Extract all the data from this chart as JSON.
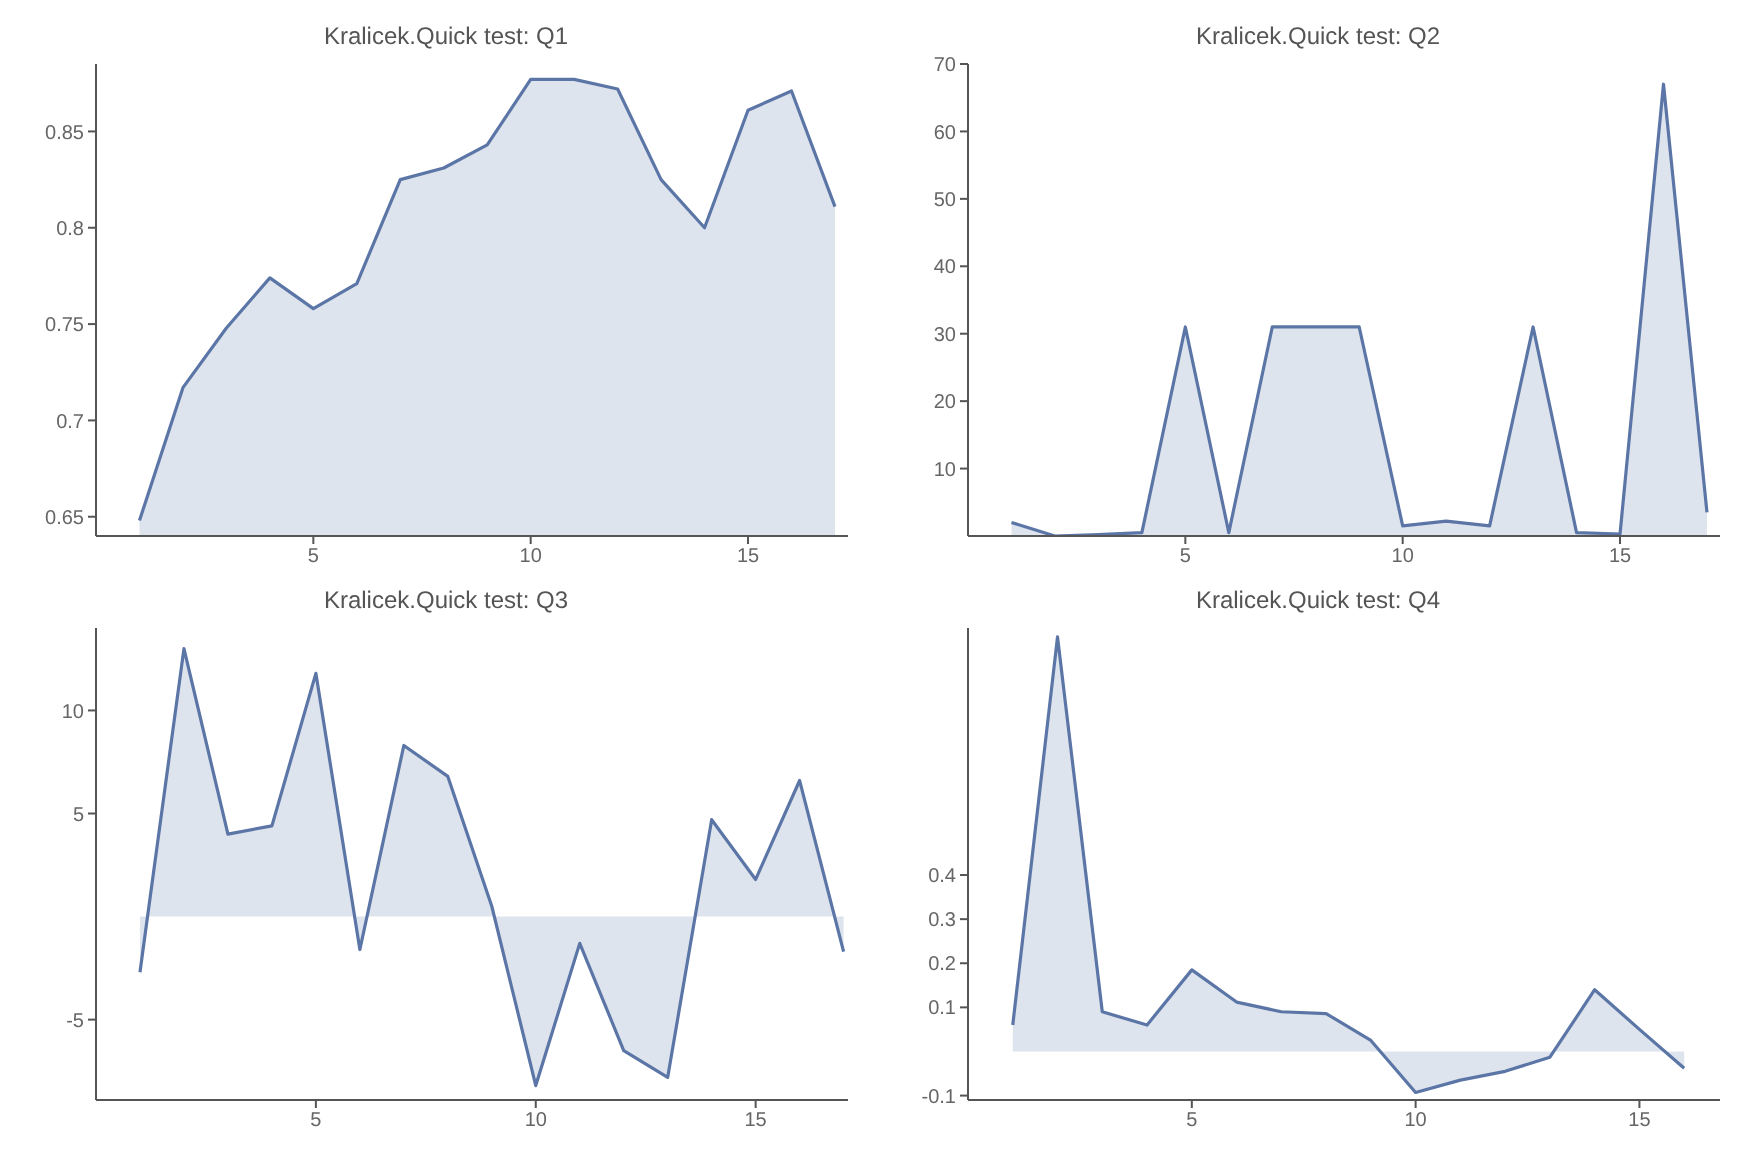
{
  "chart_data": [
    {
      "type": "area",
      "title": "Kralicek.Quick test: Q1",
      "x": [
        1,
        2,
        3,
        4,
        5,
        6,
        7,
        8,
        9,
        10,
        11,
        12,
        13,
        14,
        15,
        16,
        17
      ],
      "values": [
        0.648,
        0.717,
        0.748,
        0.774,
        0.758,
        0.771,
        0.825,
        0.831,
        0.843,
        0.877,
        0.877,
        0.872,
        0.825,
        0.8,
        0.861,
        0.871,
        0.811
      ],
      "color": "#5b76a6",
      "xlim": [
        0,
        17.3
      ],
      "ylim": [
        0.64,
        0.885
      ],
      "xticks": [
        5,
        10,
        15
      ],
      "yticks": [
        0.65,
        0.7,
        0.75,
        0.8,
        0.85
      ]
    },
    {
      "type": "area",
      "title": "Kralicek.Quick test: Q2",
      "x": [
        1,
        2,
        3,
        4,
        5,
        6,
        7,
        8,
        9,
        10,
        11,
        12,
        13,
        14,
        15,
        16,
        17
      ],
      "values": [
        2,
        0,
        0.2,
        0.5,
        31,
        0.5,
        31,
        31,
        31,
        1.5,
        2.2,
        1.5,
        31,
        0.5,
        0.3,
        67,
        3.5
      ],
      "color": "#5b76a6",
      "xlim": [
        0,
        17.3
      ],
      "ylim": [
        0,
        70
      ],
      "xticks": [
        5,
        10,
        15
      ],
      "yticks": [
        10,
        20,
        30,
        40,
        50,
        60,
        70
      ]
    },
    {
      "type": "area",
      "title": "Kralicek.Quick test: Q3",
      "x": [
        1,
        2,
        3,
        4,
        5,
        6,
        7,
        8,
        9,
        10,
        11,
        12,
        13,
        14,
        15,
        16,
        17
      ],
      "values": [
        -2.7,
        13,
        4,
        4.4,
        11.8,
        -1.6,
        8.3,
        6.8,
        0.5,
        -8.2,
        -1.3,
        -6.5,
        -7.8,
        4.7,
        1.8,
        6.6,
        -1.7
      ],
      "color": "#5b76a6",
      "xlim": [
        0,
        17.1
      ],
      "ylim": [
        -8.9,
        14
      ],
      "xticks": [
        5,
        10,
        15
      ],
      "yticks": [
        -5,
        5,
        10
      ]
    },
    {
      "type": "area",
      "title": "Kralicek.Quick test: Q4",
      "x": [
        1,
        2,
        3,
        4,
        5,
        6,
        7,
        8,
        9,
        10,
        11,
        12,
        13,
        14,
        15,
        16
      ],
      "values": [
        0.06,
        0.94,
        0.09,
        0.06,
        0.185,
        0.112,
        0.09,
        0.086,
        0.025,
        -0.093,
        -0.065,
        -0.045,
        -0.013,
        0.14,
        0.05,
        -0.038
      ],
      "color": "#5b76a6",
      "xlim": [
        0,
        16.8
      ],
      "ylim": [
        -0.11,
        0.96
      ],
      "xticks": [
        5,
        10,
        15
      ],
      "yticks": [
        -0.1,
        0.1,
        0.2,
        0.3,
        0.4
      ]
    }
  ]
}
